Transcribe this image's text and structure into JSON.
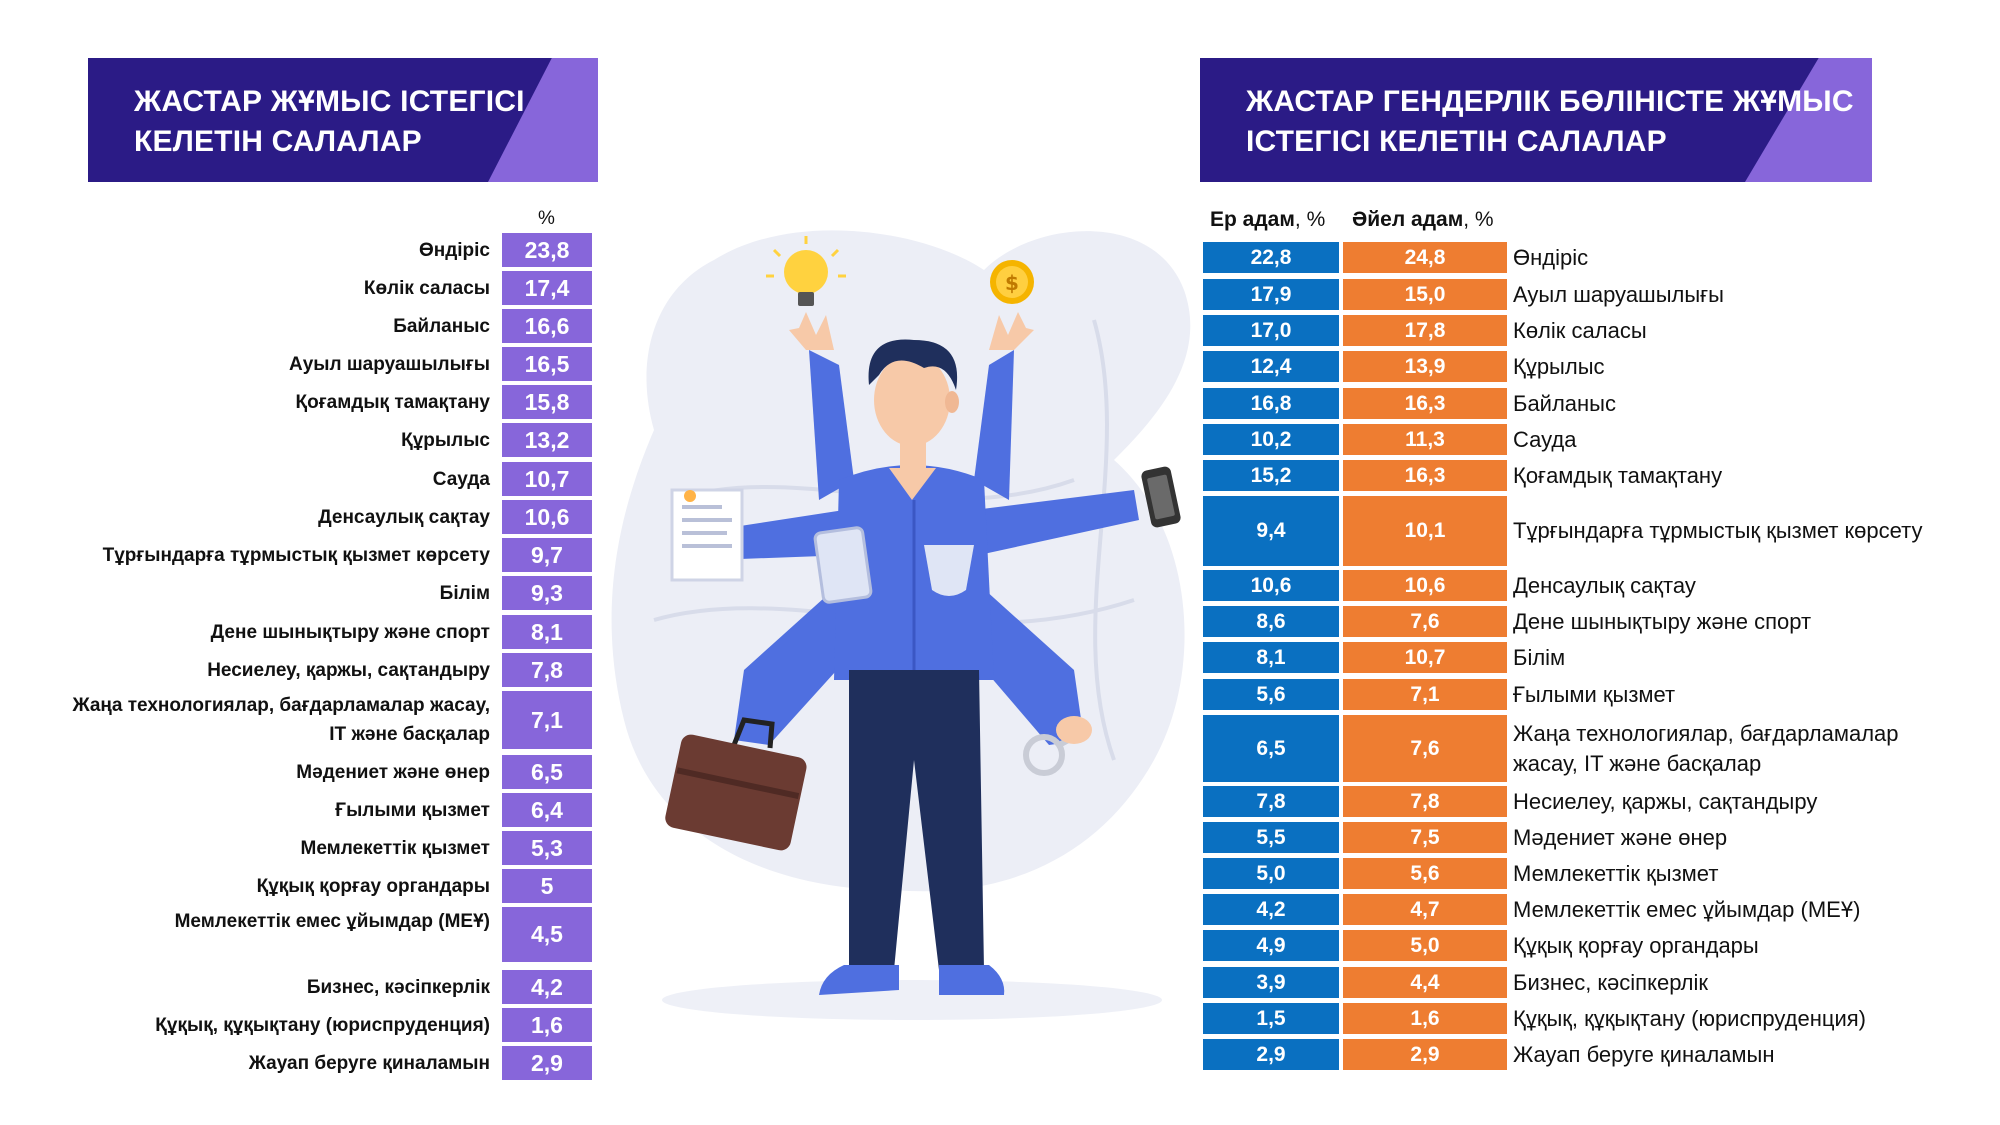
{
  "left_panel": {
    "title_line1": "ЖАСТАР ЖҰМЫС ІСТЕГІСІ",
    "title_line2": "КЕЛЕТІН САЛАЛАР",
    "unit": "%",
    "rows": [
      {
        "label": "Өндіріс",
        "value": "23,8"
      },
      {
        "label": "Көлік саласы",
        "value": "17,4"
      },
      {
        "label": "Байланыс",
        "value": "16,6"
      },
      {
        "label": "Ауыл шаруашылығы",
        "value": "16,5"
      },
      {
        "label": "Қоғамдық тамақтану",
        "value": "15,8"
      },
      {
        "label": "Құрылыс",
        "value": "13,2"
      },
      {
        "label": "Сауда",
        "value": "10,7"
      },
      {
        "label": "Денсаулық сақтау",
        "value": "10,6"
      },
      {
        "label": "Тұрғындарға тұрмыстық қызмет көрсету",
        "value": "9,7"
      },
      {
        "label": "Білім",
        "value": "9,3"
      },
      {
        "label": "Дене шынықтыру және спорт",
        "value": "8,1"
      },
      {
        "label": "Несиелеу, қаржы, сақтандыру",
        "value": "7,8"
      },
      {
        "label": "Жаңа технологиялар, бағдарламалар жасау, IT және басқалар",
        "value": "7,1"
      },
      {
        "label": "Мәдениет және өнер",
        "value": "6,5"
      },
      {
        "label": "Ғылыми қызмет",
        "value": "6,4"
      },
      {
        "label": "Мемлекеттік қызмет",
        "value": "5,3"
      },
      {
        "label": "Құқық қорғау органдары",
        "value": "5"
      },
      {
        "label": "Мемлекеттік емес ұйымдар (МЕҰ)",
        "value": "4,5"
      },
      {
        "label": "Бизнес, кәсіпкерлік",
        "value": "4,2"
      },
      {
        "label": "Құқық, құқықтану  (юриспруденция)",
        "value": "1,6"
      },
      {
        "label": "Жауап беруге қиналамын",
        "value": "2,9"
      }
    ]
  },
  "right_panel": {
    "title_line1": "ЖАСТАР ГЕНДЕРЛІК БӨЛІНІСТЕ ЖҰМЫС",
    "title_line2": "ІСТЕГІСІ КЕЛЕТІН САЛАЛАР",
    "header_male_bold": "Ер адам",
    "header_male_unit": ", %",
    "header_female_bold": "Әйел адам",
    "header_female_unit": ", %",
    "rows": [
      {
        "male": "22,8",
        "female": "24,8",
        "label": "Өндіріс"
      },
      {
        "male": "17,9",
        "female": "15,0",
        "label": "Ауыл шаруашылығы"
      },
      {
        "male": "17,0",
        "female": "17,8",
        "label": "Көлік саласы"
      },
      {
        "male": "12,4",
        "female": "13,9",
        "label": "Құрылыс"
      },
      {
        "male": "16,8",
        "female": "16,3",
        "label": "Байланыс"
      },
      {
        "male": "10,2",
        "female": "11,3",
        "label": "Сауда"
      },
      {
        "male": "15,2",
        "female": "16,3",
        "label": "Қоғамдық тамақтану"
      },
      {
        "male": "9,4",
        "female": "10,1",
        "label": "Тұрғындарға тұрмыстық қызмет көрсету"
      },
      {
        "male": "10,6",
        "female": "10,6",
        "label": "Денсаулық сақтау"
      },
      {
        "male": "8,6",
        "female": "7,6",
        "label": "Дене шынықтыру және спорт"
      },
      {
        "male": "8,1",
        "female": "10,7",
        "label": "Білім"
      },
      {
        "male": "5,6",
        "female": "7,1",
        "label": "Ғылыми қызмет"
      },
      {
        "male": "6,5",
        "female": "7,6",
        "label": "Жаңа технологиялар, бағдарламалар жасау, IT және басқалар"
      },
      {
        "male": "7,8",
        "female": "7,8",
        "label": "Несиелеу, қаржы, сақтандыру"
      },
      {
        "male": "5,5",
        "female": "7,5",
        "label": "Мәдениет және өнер"
      },
      {
        "male": "5,0",
        "female": "5,6",
        "label": "Мемлекеттік қызмет"
      },
      {
        "male": "4,2",
        "female": "4,7",
        "label": "Мемлекеттік емес ұйымдар (МЕҰ)"
      },
      {
        "male": "4,9",
        "female": "5,0",
        "label": "Құқық қорғау органдары"
      },
      {
        "male": "3,9",
        "female": "4,4",
        "label": "Бизнес, кәсіпкерлік"
      },
      {
        "male": "1,5",
        "female": "1,6",
        "label": "Құқық, құқықтану  (юриспруденция)"
      },
      {
        "male": "2,9",
        "female": "2,9",
        "label": "Жауап беруге қиналамын"
      }
    ]
  },
  "colors": {
    "banner_dark": "#2b1b86",
    "banner_accent": "#8766da",
    "left_value_bg": "#8766da",
    "male_bg": "#0a70c1",
    "female_bg": "#ee7d31"
  }
}
